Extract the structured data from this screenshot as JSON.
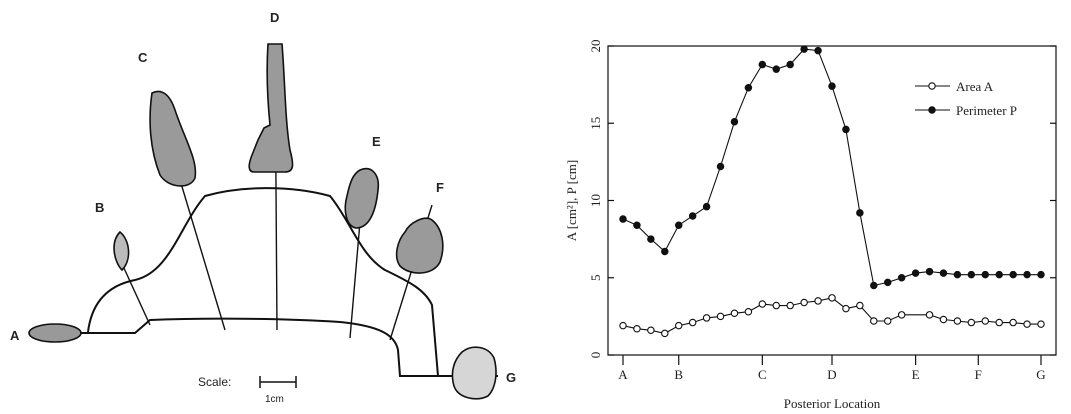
{
  "left_panel": {
    "labels": [
      "A",
      "B",
      "C",
      "D",
      "E",
      "F",
      "G"
    ],
    "scale_label": "Scale:",
    "scale_unit": "1cm"
  },
  "chart_data": {
    "type": "line",
    "xlabel": "Posterior Location",
    "ylabel": "A [cm²], P [cm]",
    "ylim": [
      0,
      20
    ],
    "y_ticks": [
      0,
      5,
      10,
      15,
      20
    ],
    "x_tick_labels": [
      "A",
      "B",
      "C",
      "D",
      "E",
      "F",
      "G"
    ],
    "x_tick_positions": [
      1,
      5,
      11,
      16,
      22,
      26.5,
      31
    ],
    "xlim": [
      1,
      31
    ],
    "legend_position": "top-right",
    "grid": false,
    "series": [
      {
        "name": "Area A",
        "marker": "open-circle",
        "x": [
          1,
          2,
          3,
          4,
          5,
          6,
          7,
          8,
          9,
          10,
          11,
          12,
          13,
          14,
          15,
          16,
          17,
          18,
          19,
          20,
          21,
          23,
          24,
          25,
          26,
          27,
          28,
          29,
          30,
          31
        ],
        "values": [
          1.9,
          1.7,
          1.6,
          1.4,
          1.9,
          2.1,
          2.4,
          2.5,
          2.7,
          2.8,
          3.3,
          3.2,
          3.2,
          3.4,
          3.5,
          3.7,
          3.0,
          3.2,
          2.2,
          2.2,
          2.6,
          2.6,
          2.3,
          2.2,
          2.1,
          2.2,
          2.1,
          2.1,
          2.0,
          2.0
        ]
      },
      {
        "name": "Perimeter P",
        "marker": "filled-circle",
        "x": [
          1,
          2,
          3,
          4,
          5,
          6,
          7,
          8,
          9,
          10,
          11,
          12,
          13,
          14,
          15,
          16,
          17,
          18,
          19,
          20,
          21,
          22,
          23,
          24,
          25,
          26,
          27,
          28,
          29,
          30,
          31
        ],
        "values": [
          8.8,
          8.4,
          7.5,
          6.7,
          8.4,
          9.0,
          9.6,
          12.2,
          15.1,
          17.3,
          18.8,
          18.5,
          18.8,
          19.8,
          19.7,
          17.4,
          14.6,
          9.2,
          4.5,
          4.7,
          5.0,
          5.3,
          5.4,
          5.3,
          5.2,
          5.2,
          5.2,
          5.2,
          5.2,
          5.2,
          5.2
        ]
      }
    ]
  }
}
